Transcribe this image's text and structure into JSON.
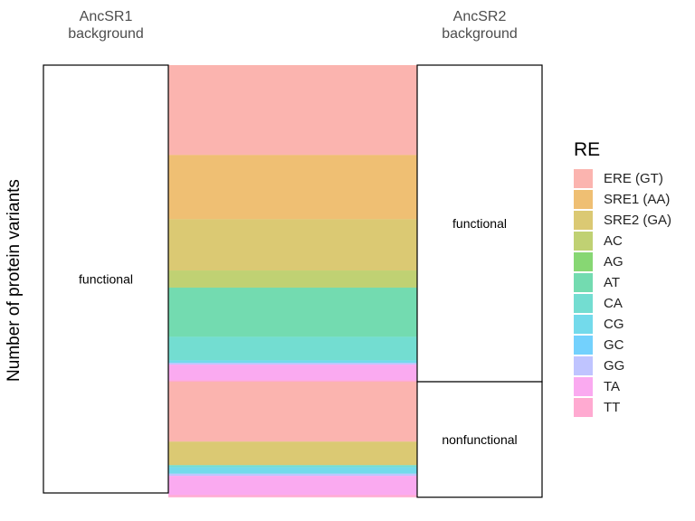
{
  "chart_data": {
    "type": "alluvial",
    "ylabel": "Number of protein variants",
    "axes": [
      {
        "label": "AncSR1\nbackground",
        "strata": [
          "functional"
        ]
      },
      {
        "label": "AncSR2\nbackground",
        "strata": [
          "functional",
          "nonfunctional"
        ]
      }
    ],
    "total": 100,
    "legend": {
      "title": "RE",
      "position": "right",
      "entries": [
        {
          "name": "ERE (GT)",
          "color": "#F8766D"
        },
        {
          "name": "SRE1 (AA)",
          "color": "#E18A00"
        },
        {
          "name": "SRE2 (GA)",
          "color": "#BE9C00"
        },
        {
          "name": "AC",
          "color": "#8CAB00"
        },
        {
          "name": "AG",
          "color": "#24B700"
        },
        {
          "name": "AT",
          "color": "#00BE70"
        },
        {
          "name": "CA",
          "color": "#00C1AB"
        },
        {
          "name": "CG",
          "color": "#00BBDA"
        },
        {
          "name": "GC",
          "color": "#00ACFC"
        },
        {
          "name": "GG",
          "color": "#8B93FF"
        },
        {
          "name": "TA",
          "color": "#F564E3"
        },
        {
          "name": "TT",
          "color": "#FF65AC"
        }
      ]
    },
    "flows": [
      {
        "re": "ERE (GT)",
        "to": "functional",
        "value": 21
      },
      {
        "re": "SRE1 (AA)",
        "to": "functional",
        "value": 15
      },
      {
        "re": "SRE2 (GA)",
        "to": "functional",
        "value": 12
      },
      {
        "re": "AC",
        "to": "functional",
        "value": 4
      },
      {
        "re": "AT",
        "to": "functional",
        "value": 11.5
      },
      {
        "re": "CA",
        "to": "functional",
        "value": 5.5
      },
      {
        "re": "CG",
        "to": "functional",
        "value": 0.6
      },
      {
        "re": "GG",
        "to": "functional",
        "value": 0.4
      },
      {
        "re": "TA",
        "to": "functional",
        "value": 3.7
      },
      {
        "re": "TT",
        "to": "functional",
        "value": 0.3
      },
      {
        "re": "ERE (GT)",
        "to": "nonfunctional",
        "value": 14
      },
      {
        "re": "SRE2 (GA)",
        "to": "nonfunctional",
        "value": 5.5
      },
      {
        "re": "CA",
        "to": "nonfunctional",
        "value": 0.5
      },
      {
        "re": "CG",
        "to": "nonfunctional",
        "value": 1.5
      },
      {
        "re": "GG",
        "to": "nonfunctional",
        "value": 0.5
      },
      {
        "re": "TA",
        "to": "nonfunctional",
        "value": 4.5
      },
      {
        "re": "TT",
        "to": "nonfunctional",
        "value": 0.5
      }
    ]
  }
}
